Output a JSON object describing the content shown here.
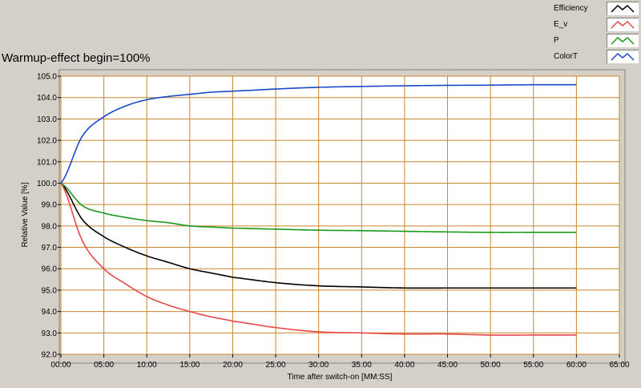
{
  "chart_data": {
    "type": "line",
    "title": "Warmup-effect begin=100%",
    "xlabel": "Time after switch-on [MM:SS]",
    "ylabel": "Relative Value [%]",
    "xlim": [
      0,
      65
    ],
    "ylim": [
      92.0,
      105.0
    ],
    "x_ticks": [
      "00:00",
      "05:00",
      "10:00",
      "15:00",
      "20:00",
      "25:00",
      "30:00",
      "35:00",
      "40:00",
      "45:00",
      "50:00",
      "55:00",
      "60:00",
      "65:00"
    ],
    "y_ticks": [
      "105.0",
      "104.0",
      "103.0",
      "102.0",
      "101.0",
      "100.0",
      "99.0",
      "98.0",
      "97.0",
      "96.0",
      "95.0",
      "94.0",
      "93.0",
      "92.0"
    ],
    "grid": true,
    "legend_position": "top-right",
    "x": [
      0,
      2.5,
      5,
      7.5,
      10,
      12.5,
      15,
      17.5,
      20,
      25,
      30,
      35,
      40,
      45,
      50,
      55,
      60
    ],
    "series": [
      {
        "name": "Efficiency",
        "color": "#000000",
        "values": [
          100.0,
          98.3,
          97.5,
          97.0,
          96.6,
          96.3,
          96.0,
          95.8,
          95.6,
          95.35,
          95.2,
          95.15,
          95.1,
          95.1,
          95.1,
          95.1,
          95.1
        ]
      },
      {
        "name": "E_v",
        "color": "#e84848",
        "values": [
          100.0,
          97.3,
          96.0,
          95.3,
          94.7,
          94.3,
          94.0,
          93.75,
          93.55,
          93.25,
          93.05,
          93.0,
          92.95,
          92.95,
          92.9,
          92.9,
          92.9
        ]
      },
      {
        "name": "P",
        "color": "#1a9a1a",
        "values": [
          100.0,
          98.95,
          98.6,
          98.4,
          98.25,
          98.15,
          98.0,
          97.95,
          97.9,
          97.85,
          97.8,
          97.78,
          97.75,
          97.72,
          97.7,
          97.7,
          97.7
        ]
      },
      {
        "name": "ColorT",
        "color": "#1a4ac8",
        "values": [
          100.0,
          102.2,
          103.1,
          103.6,
          103.9,
          104.05,
          104.15,
          104.25,
          104.3,
          104.4,
          104.48,
          104.52,
          104.55,
          104.57,
          104.58,
          104.6,
          104.6
        ]
      }
    ]
  }
}
